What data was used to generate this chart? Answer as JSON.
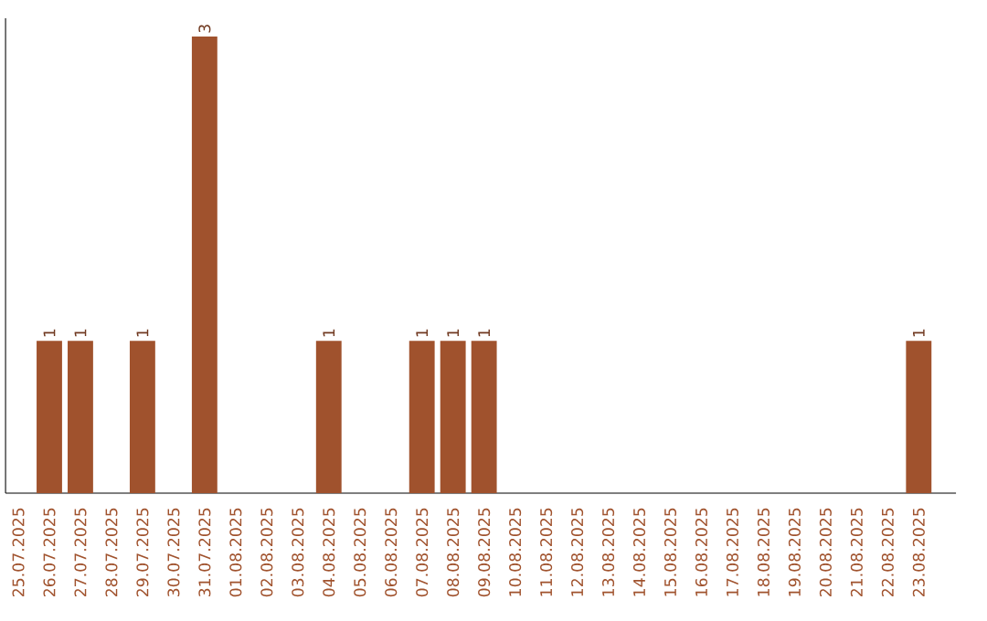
{
  "chart_data": {
    "type": "bar",
    "categories": [
      "25.07.2025",
      "26.07.2025",
      "27.07.2025",
      "28.07.2025",
      "29.07.2025",
      "30.07.2025",
      "31.07.2025",
      "01.08.2025",
      "02.08.2025",
      "03.08.2025",
      "04.08.2025",
      "05.08.2025",
      "06.08.2025",
      "07.08.2025",
      "08.08.2025",
      "09.08.2025",
      "10.08.2025",
      "11.08.2025",
      "12.08.2025",
      "13.08.2025",
      "14.08.2025",
      "15.08.2025",
      "16.08.2025",
      "17.08.2025",
      "18.08.2025",
      "19.08.2025",
      "20.08.2025",
      "21.08.2025",
      "22.08.2025",
      "23.08.2025"
    ],
    "values": [
      0,
      1,
      1,
      0,
      1,
      0,
      3,
      0,
      0,
      0,
      1,
      0,
      0,
      1,
      1,
      1,
      0,
      0,
      0,
      0,
      0,
      0,
      0,
      0,
      0,
      0,
      0,
      0,
      0,
      1
    ],
    "value_labels": [
      null,
      "1",
      "1",
      null,
      "1",
      null,
      "3",
      null,
      null,
      null,
      "1",
      null,
      null,
      "1",
      "1",
      "1",
      null,
      null,
      null,
      null,
      null,
      null,
      null,
      null,
      null,
      null,
      null,
      null,
      null,
      "1"
    ],
    "color": "#a0522d",
    "grid": false
  }
}
